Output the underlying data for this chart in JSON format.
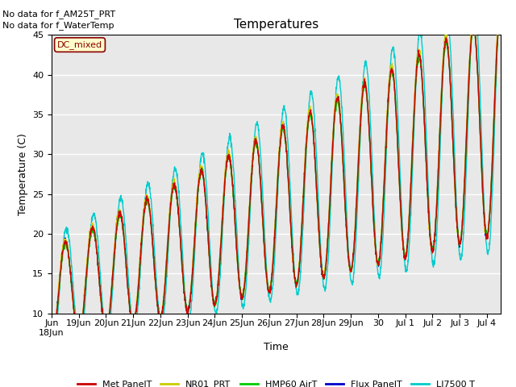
{
  "title": "Temperatures",
  "ylabel": "Temperature (C)",
  "xlabel": "Time",
  "no_data_text_1": "No data for f_AM25T_PRT",
  "no_data_text_2": "No data for f_WaterTemp",
  "legend_box_label": "DC_mixed",
  "legend_entries": [
    "Met PanelT",
    "NR01_PRT",
    "HMP60 AirT",
    "Flux PanelT",
    "LI7500 T"
  ],
  "line_colors": [
    "#cc0000",
    "#cccc00",
    "#00cc00",
    "#0000cc",
    "#00cccc"
  ],
  "ylim": [
    10,
    45
  ],
  "yticks": [
    10,
    15,
    20,
    25,
    30,
    35,
    40,
    45
  ],
  "tick_labels": [
    "Jun\n18Jun",
    "19Jun",
    "20Jun",
    "21Jun",
    "22Jun",
    "23Jun",
    "24Jun",
    "25Jun",
    "26Jun",
    "27Jun",
    "28Jun",
    "29Jun",
    "30",
    "Jul 1",
    "Jul 2",
    "Jul 3",
    "Jul 4"
  ],
  "background_color": "#ffffff",
  "plot_bg_color": "#e8e8e8",
  "grid_color": "#ffffff"
}
